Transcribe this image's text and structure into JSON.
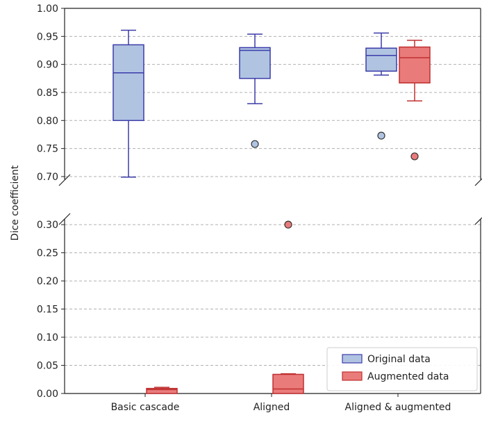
{
  "chart_data": {
    "type": "box",
    "ylabel": "Dice coefficient",
    "categories": [
      "Basic cascade",
      "Aligned",
      "Aligned & augmented"
    ],
    "axis_break": true,
    "upper_ylim": [
      0.695,
      1.0
    ],
    "lower_ylim": [
      0.0,
      0.31
    ],
    "upper_yticks": [
      "0.70",
      "0.75",
      "0.80",
      "0.85",
      "0.90",
      "0.95",
      "1.00"
    ],
    "lower_yticks": [
      "0.00",
      "0.05",
      "0.10",
      "0.15",
      "0.20",
      "0.25",
      "0.30"
    ],
    "grid": true,
    "legend_position": "bottom-right",
    "series": [
      {
        "name": "Original data",
        "face_color": "#b0c4e2",
        "edge_color": "#3b3ba8",
        "boxes": [
          {
            "category": "Basic cascade",
            "whislo": 0.699,
            "q1": 0.8,
            "med": 0.885,
            "q3": 0.935,
            "whishi": 0.961,
            "fliers": []
          },
          {
            "category": "Aligned",
            "whislo": 0.83,
            "q1": 0.875,
            "med": 0.925,
            "q3": 0.93,
            "whishi": 0.954,
            "fliers": [
              0.758
            ]
          },
          {
            "category": "Aligned & augmented",
            "whislo": 0.881,
            "q1": 0.888,
            "med": 0.916,
            "q3": 0.929,
            "whishi": 0.956,
            "fliers": [
              0.773
            ]
          }
        ]
      },
      {
        "name": "Augmented data",
        "face_color": "#ea7b7b",
        "edge_color": "#c03030",
        "boxes": [
          {
            "category": "Basic cascade",
            "whislo": 0.0,
            "q1": 0.0,
            "med": 0.007,
            "q3": 0.009,
            "whishi": 0.011,
            "fliers": []
          },
          {
            "category": "Aligned",
            "whislo": 0.0,
            "q1": 0.0,
            "med": 0.008,
            "q3": 0.034,
            "whishi": 0.035,
            "fliers": [
              0.3
            ]
          },
          {
            "category": "Aligned & augmented",
            "whislo": 0.835,
            "q1": 0.867,
            "med": 0.912,
            "q3": 0.931,
            "whishi": 0.943,
            "fliers": [
              0.736
            ]
          }
        ]
      }
    ]
  }
}
